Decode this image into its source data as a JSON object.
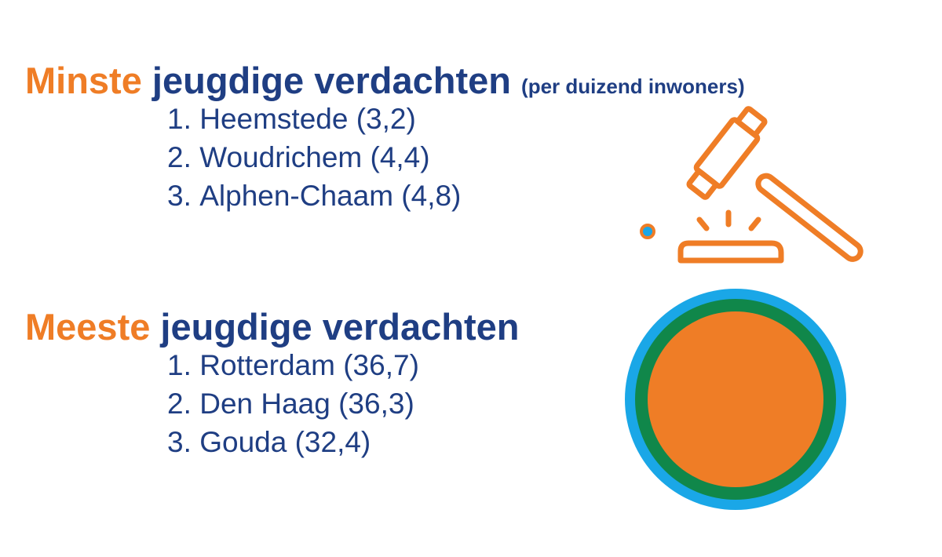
{
  "least": {
    "accent_word": "Minste",
    "rest_word": "jeugdige verdachten",
    "suffix": "(per duizend inwoners)",
    "items": [
      {
        "rank": "1.",
        "text": "Heemstede (3,2)"
      },
      {
        "rank": "2.",
        "text": "Woudrichem (4,4)"
      },
      {
        "rank": "3.",
        "text": "Alphen-Chaam (4,8)"
      }
    ]
  },
  "most": {
    "accent_word": "Meeste",
    "rest_word": "jeugdige verdachten",
    "items": [
      {
        "rank": "1.",
        "text": "Rotterdam (36,7)"
      },
      {
        "rank": "2.",
        "text": "Den Haag (36,3)"
      },
      {
        "rank": "3.",
        "text": "Gouda (32,4)"
      }
    ]
  },
  "colors": {
    "navy_text": "#1f3e83",
    "orange_accent": "#ef7d26",
    "circle_outer_blue": "#1aa7e7",
    "circle_ring_green": "#10874a",
    "circle_fill_orange": "#ef7d26"
  },
  "icons": [
    "gavel-icon",
    "small-dot-icon",
    "decorative-circle"
  ]
}
